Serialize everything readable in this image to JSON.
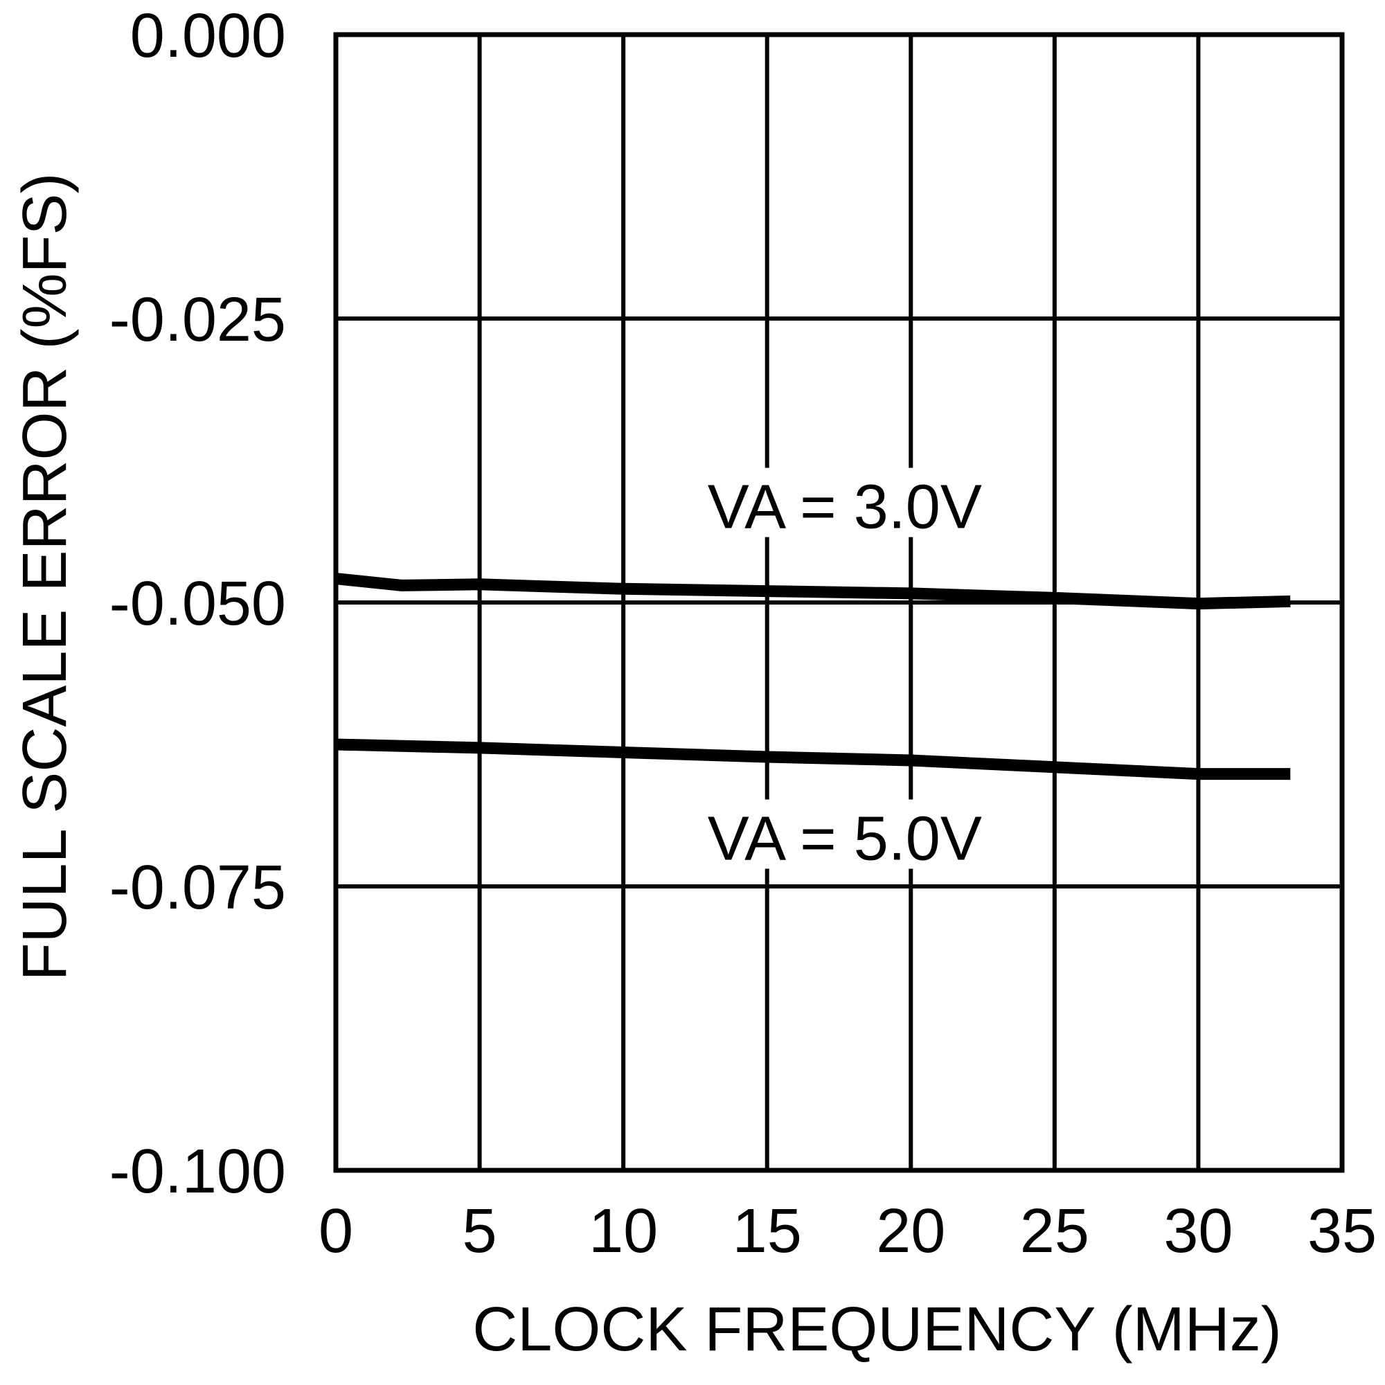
{
  "chart_data": {
    "type": "line",
    "title": "",
    "xlabel": "CLOCK FREQUENCY (MHz)",
    "ylabel": "FULL SCALE ERROR (%FS)",
    "xlim": [
      0,
      35
    ],
    "ylim": [
      -0.1,
      0.0
    ],
    "x_ticks": [
      0,
      5,
      10,
      15,
      20,
      25,
      30,
      35
    ],
    "x_tick_labels": [
      "0",
      "5",
      "10",
      "15",
      "20",
      "25",
      "30",
      "35"
    ],
    "y_ticks": [
      0.0,
      -0.025,
      -0.05,
      -0.075,
      -0.1
    ],
    "y_tick_labels": [
      "0.000",
      "-0.025",
      "-0.050",
      "-0.075",
      "-0.100"
    ],
    "grid": true,
    "legend": "none (inline annotations)",
    "series": [
      {
        "name": "VA = 3.0V",
        "x": [
          0,
          2.3,
          5,
          10,
          15,
          20,
          25,
          30,
          33.2
        ],
        "y": [
          -0.0479,
          -0.0485,
          -0.0484,
          -0.0488,
          -0.049,
          -0.0492,
          -0.0496,
          -0.0501,
          -0.0499
        ]
      },
      {
        "name": "VA = 5.0V",
        "x": [
          0,
          5,
          10,
          15,
          20,
          25,
          30,
          33.2
        ],
        "y": [
          -0.0625,
          -0.0628,
          -0.0632,
          -0.0636,
          -0.0639,
          -0.0645,
          -0.0651,
          -0.0651
        ]
      }
    ],
    "annotations": [
      {
        "text": "VA = 3.0V",
        "x": 17.7,
        "y": -0.0415,
        "series": "VA = 3.0V"
      },
      {
        "text": "VA = 5.0V",
        "x": 17.7,
        "y": -0.0707,
        "series": "VA = 5.0V"
      }
    ]
  },
  "colors": {
    "background": "#ffffff",
    "line": "#000000",
    "grid": "#000000",
    "text": "#000000"
  }
}
